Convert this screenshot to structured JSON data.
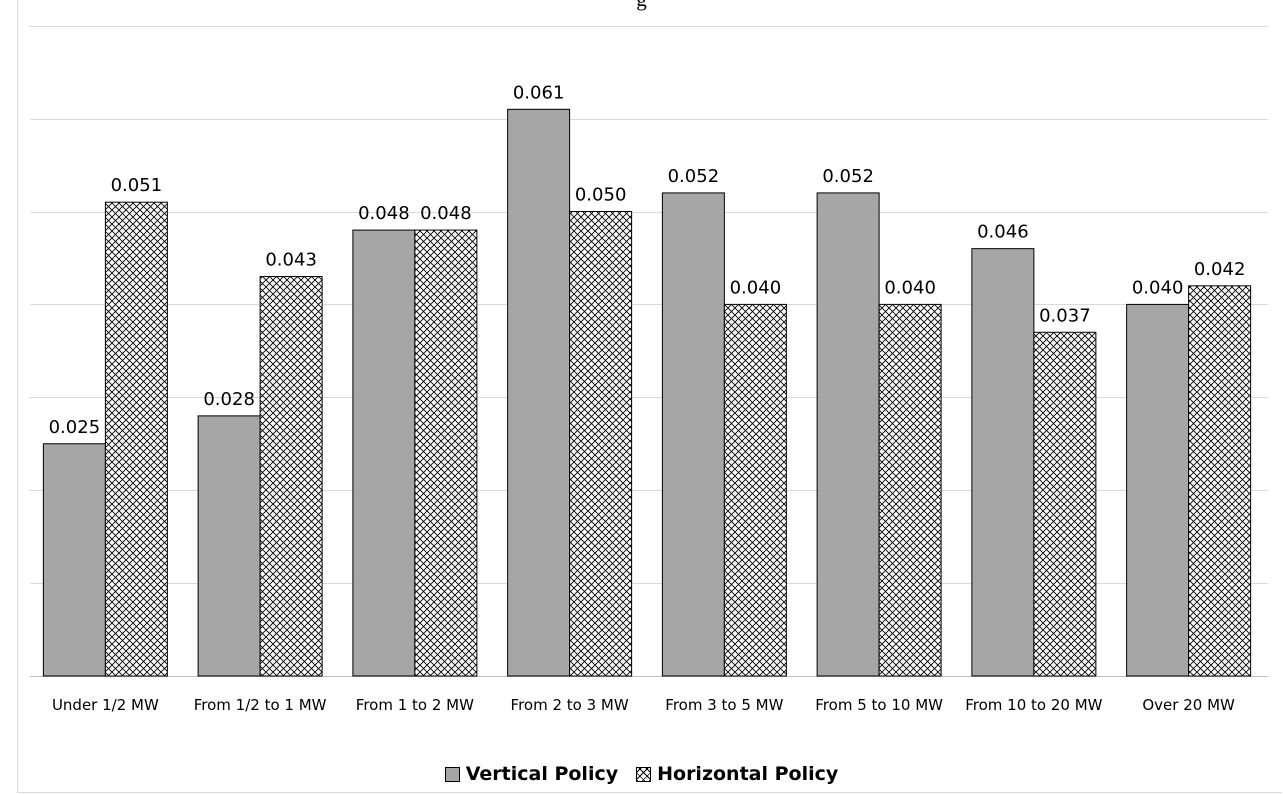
{
  "chart_data": {
    "type": "bar",
    "title": "g",
    "categories": [
      "Under 1/2 MW",
      "From 1/2 to 1 MW",
      "From 1 to 2 MW",
      "From 2 to 3 MW",
      "From 3 to 5 MW",
      "From 5 to 10 MW",
      "From 10 to 20 MW",
      "Over 20 MW"
    ],
    "series": [
      {
        "name": "Vertical Policy",
        "values": [
          0.025,
          0.028,
          0.048,
          0.061,
          0.052,
          0.052,
          0.046,
          0.04
        ],
        "labels": [
          "0.025",
          "0.028",
          "0.048",
          "0.061",
          "0.052",
          "0.052",
          "0.046",
          "0.040"
        ]
      },
      {
        "name": "Horizontal Policy",
        "values": [
          0.051,
          0.043,
          0.048,
          0.05,
          0.04,
          0.04,
          0.037,
          0.042
        ],
        "labels": [
          "0.051",
          "0.043",
          "0.048",
          "0.050",
          "0.040",
          "0.040",
          "0.037",
          "0.042"
        ]
      }
    ],
    "ylim": [
      0,
      0.07
    ],
    "grid": true,
    "legend_position": "bottom",
    "colors": {
      "vertical": "#a6a6a6",
      "horizontal_pattern": "#000000",
      "gridline": "#d9d9d9"
    }
  }
}
